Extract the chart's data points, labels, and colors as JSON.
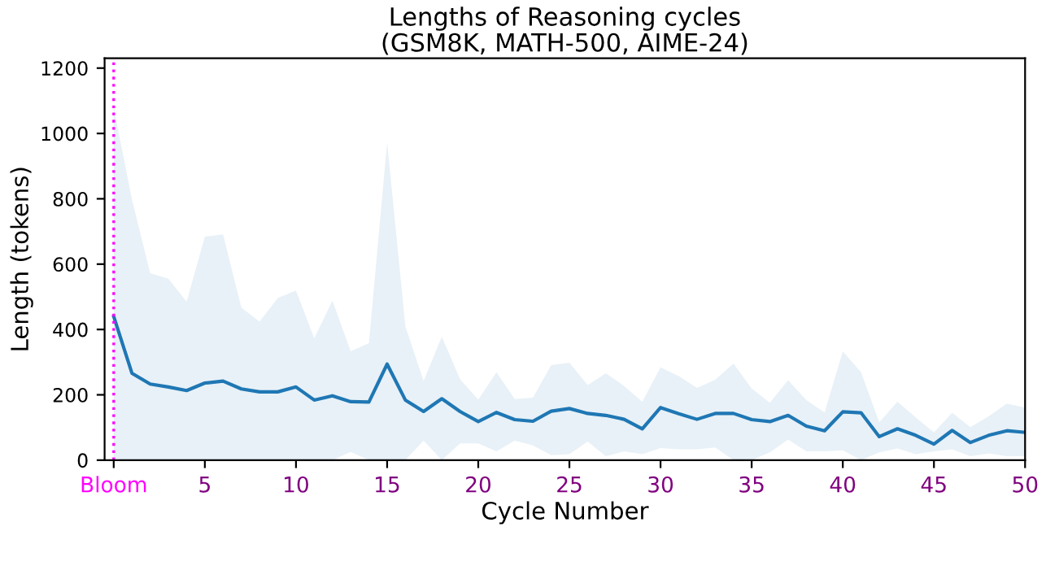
{
  "chart_data": {
    "type": "line",
    "title": "Lengths of Reasoning cycles\n(GSM8K, MATH-500, AIME-24)",
    "xlabel": "Cycle Number",
    "ylabel": "Length (tokens)",
    "x": [
      0,
      1,
      2,
      3,
      4,
      5,
      6,
      7,
      8,
      9,
      10,
      11,
      12,
      13,
      14,
      15,
      16,
      17,
      18,
      19,
      20,
      21,
      22,
      23,
      24,
      25,
      26,
      27,
      28,
      29,
      30,
      31,
      32,
      33,
      34,
      35,
      36,
      37,
      38,
      39,
      40,
      41,
      42,
      43,
      44,
      45,
      46,
      47,
      48,
      49,
      50
    ],
    "series": [
      {
        "color": "#1f77b4",
        "values": [
          440,
          266,
          233,
          224,
          213,
          236,
          242,
          218,
          209,
          209,
          224,
          184,
          197,
          179,
          178,
          294,
          184,
          149,
          188,
          149,
          118,
          146,
          124,
          119,
          150,
          158,
          143,
          137,
          125,
          96,
          161,
          142,
          125,
          143,
          143,
          124,
          118,
          137,
          104,
          90,
          148,
          145,
          72,
          96,
          76,
          49,
          91,
          54,
          76,
          90,
          85
        ],
        "lower": [
          0,
          0,
          0,
          0,
          0,
          0,
          0,
          0,
          0,
          0,
          0,
          0,
          0,
          25,
          0,
          0,
          0,
          60,
          0,
          51,
          51,
          27,
          60,
          45,
          15,
          18,
          57,
          12,
          27,
          18,
          37,
          33,
          33,
          39,
          0,
          0,
          24,
          63,
          27,
          27,
          30,
          0,
          24,
          36,
          18,
          27,
          33,
          12,
          21,
          12,
          12
        ],
        "upper": [
          1080,
          798,
          572,
          555,
          485,
          684,
          691,
          467,
          424,
          496,
          519,
          373,
          488,
          333,
          358,
          973,
          410,
          242,
          378,
          248,
          185,
          269,
          187,
          191,
          291,
          298,
          230,
          266,
          227,
          179,
          284,
          257,
          221,
          246,
          296,
          219,
          176,
          245,
          184,
          146,
          333,
          269,
          116,
          179,
          131,
          85,
          145,
          101,
          134,
          173,
          161
        ]
      }
    ],
    "xlim": [
      -0.5,
      50
    ],
    "ylim": [
      0,
      1230
    ],
    "xticks": [
      {
        "value": 0,
        "label": "Bloom"
      },
      5,
      10,
      15,
      20,
      25,
      30,
      35,
      40,
      45,
      50
    ],
    "yticks": [
      0,
      200,
      400,
      600,
      800,
      1000,
      1200
    ],
    "ref_lines": [
      {
        "axis": "x",
        "value": 0,
        "color": "#ff00ff",
        "line_style": "dotted"
      }
    ],
    "grid": false,
    "legend": false
  }
}
